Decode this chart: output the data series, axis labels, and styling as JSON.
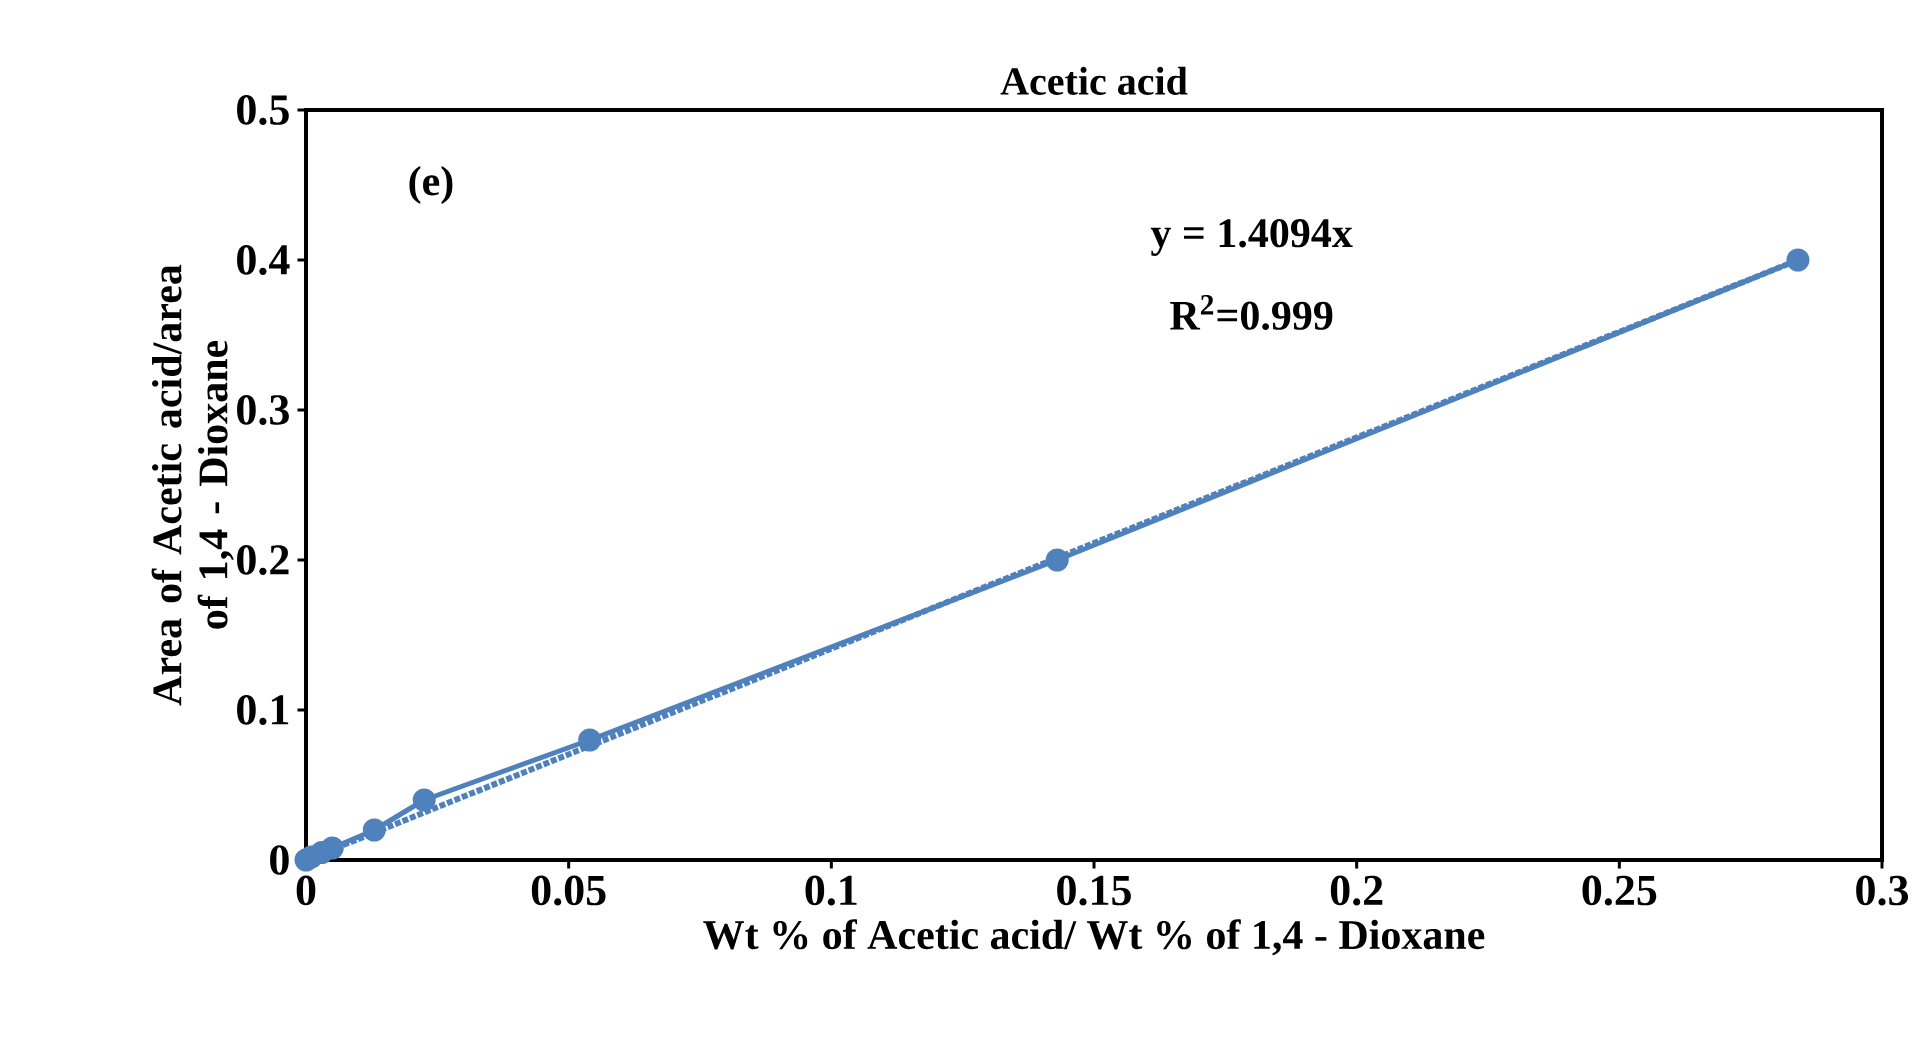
{
  "chart_data": {
    "type": "line",
    "title": "Acetic acid",
    "xlabel": "Wt % of Acetic acid/ Wt % of 1,4 - Dioxane",
    "ylabel": "Area of Acetic acid/area of 1,4 - Dioxane",
    "xlim": [
      0,
      0.3
    ],
    "ylim": [
      0,
      0.5
    ],
    "xticks": [
      0,
      0.05,
      0.1,
      0.15,
      0.2,
      0.25,
      0.3
    ],
    "yticks": [
      0,
      0.1,
      0.2,
      0.3,
      0.4,
      0.5
    ],
    "annotations": [
      "(e)",
      "y = 1.4094x",
      "R$^{2}$=0.999"
    ],
    "series": [
      {
        "color": "#4f81bd",
        "marker": "circle",
        "line_style": "solid",
        "x": [
          0,
          0.001,
          0.003,
          0.005,
          0.013,
          0.0225,
          0.054,
          0.143,
          0.284
        ],
        "values": [
          0,
          0.002,
          0.005,
          0.008,
          0.02,
          0.04,
          0.08,
          0.2,
          0.4
        ]
      },
      {
        "color": "#4f81bd",
        "marker": "none",
        "line_style": "dotted",
        "x": [
          0,
          0.284
        ],
        "values": [
          0,
          0.4
        ]
      }
    ]
  }
}
